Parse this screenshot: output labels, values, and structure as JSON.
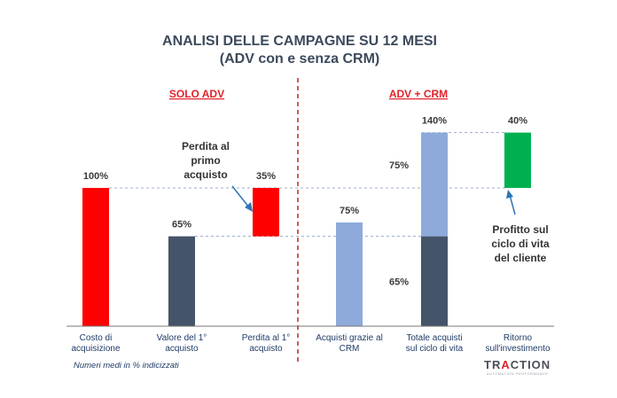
{
  "title_line1": "ANALISI DELLE CAMPAGNE SU 12 MESI",
  "title_line2": "(ADV con e senza CRM)",
  "section_left": "SOLO ADV",
  "section_right": "ADV + CRM",
  "note": "Numeri medi in % indicizzati",
  "callout_loss": [
    "Perdita al",
    "primo",
    "acquisto"
  ],
  "callout_profit": [
    "Profitto sul",
    "ciclo di vita",
    "del cliente"
  ],
  "logo": {
    "text": "TRACTION",
    "highlight": "A",
    "sub": "AUTOMATION PERFORMANCE"
  },
  "colors": {
    "red": "#ff0000",
    "dark": "#44546a",
    "light": "#8eaadb",
    "green": "#00b050",
    "divider": "#c00000",
    "text": "#1f3c66"
  },
  "chart_data": {
    "type": "bar",
    "ylim": [
      0,
      160
    ],
    "categories": [
      [
        "Costo di",
        "acquisizione"
      ],
      [
        "Valore del 1°",
        "acquisto"
      ],
      [
        "Perdita al 1°",
        "acquisto"
      ],
      [
        "Acquisti grazie al",
        "CRM"
      ],
      [
        "Totale acquisti",
        "sul ciclo di vita"
      ],
      [
        "Ritorno",
        "sull'investimento"
      ]
    ],
    "bars": [
      {
        "segments": [
          {
            "from": 0,
            "to": 100,
            "color": "#ff0000"
          }
        ],
        "label": "100%"
      },
      {
        "segments": [
          {
            "from": 0,
            "to": 65,
            "color": "#44546a"
          }
        ],
        "label": "65%"
      },
      {
        "segments": [
          {
            "from": 65,
            "to": 100,
            "color": "#ff0000"
          }
        ],
        "label": "35%"
      },
      {
        "segments": [
          {
            "from": 0,
            "to": 75,
            "color": "#8eaadb"
          }
        ],
        "label": "75%"
      },
      {
        "segments": [
          {
            "from": 0,
            "to": 65,
            "color": "#44546a"
          },
          {
            "from": 65,
            "to": 140,
            "color": "#8eaadb"
          }
        ],
        "label": "140%",
        "inner_labels": [
          "65%",
          "75%"
        ]
      },
      {
        "segments": [
          {
            "from": 100,
            "to": 140,
            "color": "#00b050"
          }
        ],
        "label": "40%"
      }
    ],
    "reference_lines": [
      100,
      65,
      140
    ]
  }
}
